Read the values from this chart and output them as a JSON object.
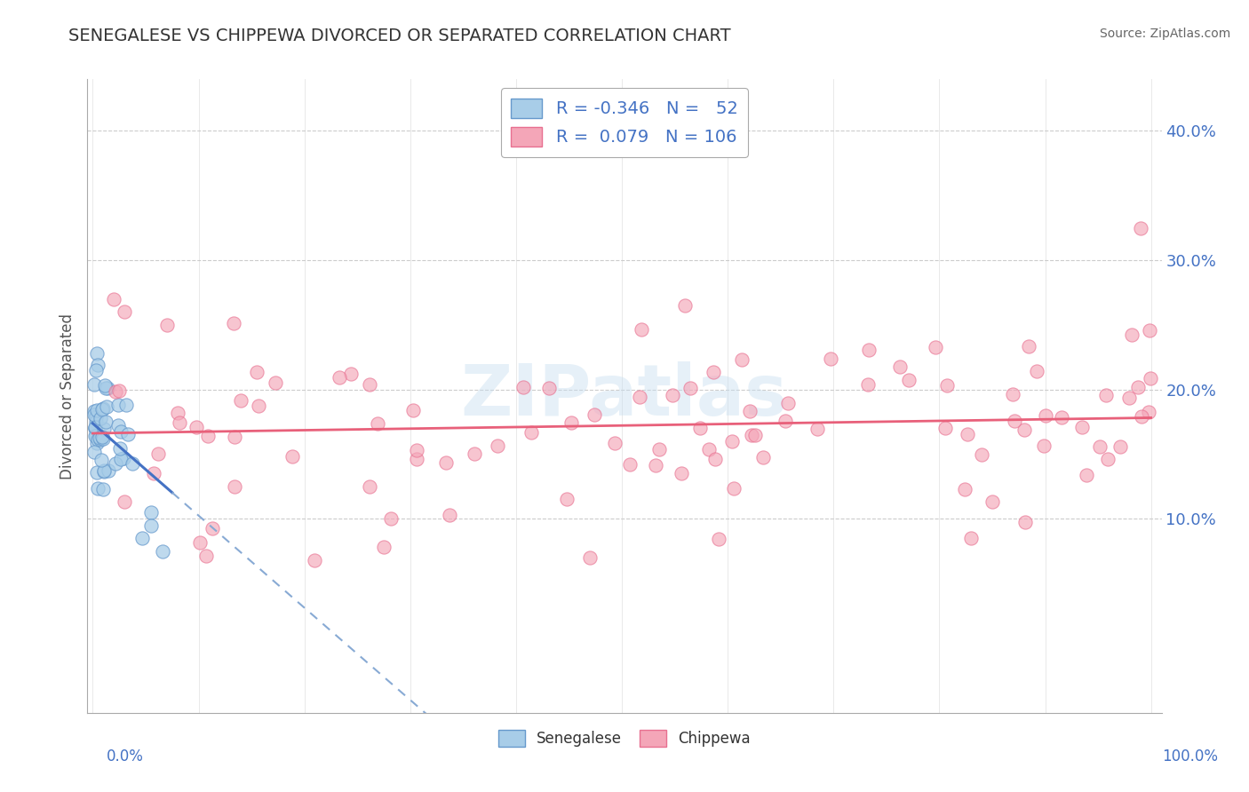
{
  "title": "SENEGALESE VS CHIPPEWA DIVORCED OR SEPARATED CORRELATION CHART",
  "source": "Source: ZipAtlas.com",
  "ylabel": "Divorced or Separated",
  "xlim": [
    -0.005,
    1.01
  ],
  "ylim": [
    -0.05,
    0.44
  ],
  "yticks": [
    0.1,
    0.2,
    0.3,
    0.4
  ],
  "ytick_labels": [
    "10.0%",
    "20.0%",
    "30.0%",
    "40.0%"
  ],
  "watermark": "ZIPatlas",
  "blue_scatter": "#a8cde8",
  "pink_scatter": "#f4a6b8",
  "blue_edge": "#6699cc",
  "pink_edge": "#e87090",
  "trend_blue_solid": "#4472c4",
  "trend_blue_dash": "#88aad4",
  "trend_pink": "#e8607a",
  "grid_color": "#cccccc",
  "title_color": "#333333",
  "label_color": "#4472c4",
  "ylabel_color": "#555555",
  "source_color": "#666666"
}
